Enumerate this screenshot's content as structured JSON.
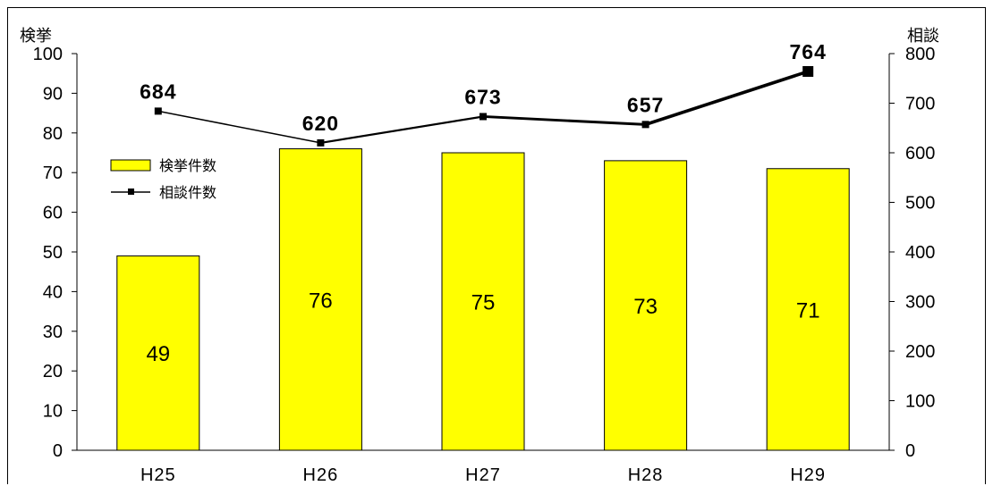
{
  "chart_data": {
    "type": "bar+line",
    "categories": [
      "H25",
      "H26",
      "H27",
      "H28",
      "H29"
    ],
    "series": [
      {
        "name": "検挙件数",
        "type": "bar",
        "axis": "left",
        "values": [
          49,
          76,
          75,
          73,
          71
        ],
        "color": "#ffff00"
      },
      {
        "name": "相談件数",
        "type": "line",
        "axis": "right",
        "values": [
          684,
          620,
          673,
          657,
          764
        ],
        "color": "#000000"
      }
    ],
    "y_left": {
      "label": "検挙",
      "range": [
        0,
        100
      ],
      "ticks": [
        0,
        10,
        20,
        30,
        40,
        50,
        60,
        70,
        80,
        90,
        100
      ]
    },
    "y_right": {
      "label": "相談",
      "range": [
        0,
        800
      ],
      "ticks": [
        0,
        100,
        200,
        300,
        400,
        500,
        600,
        700,
        800
      ]
    },
    "legend": {
      "placement": "top-left",
      "entries": [
        "検挙件数",
        "相談件数"
      ]
    },
    "grid": false
  }
}
